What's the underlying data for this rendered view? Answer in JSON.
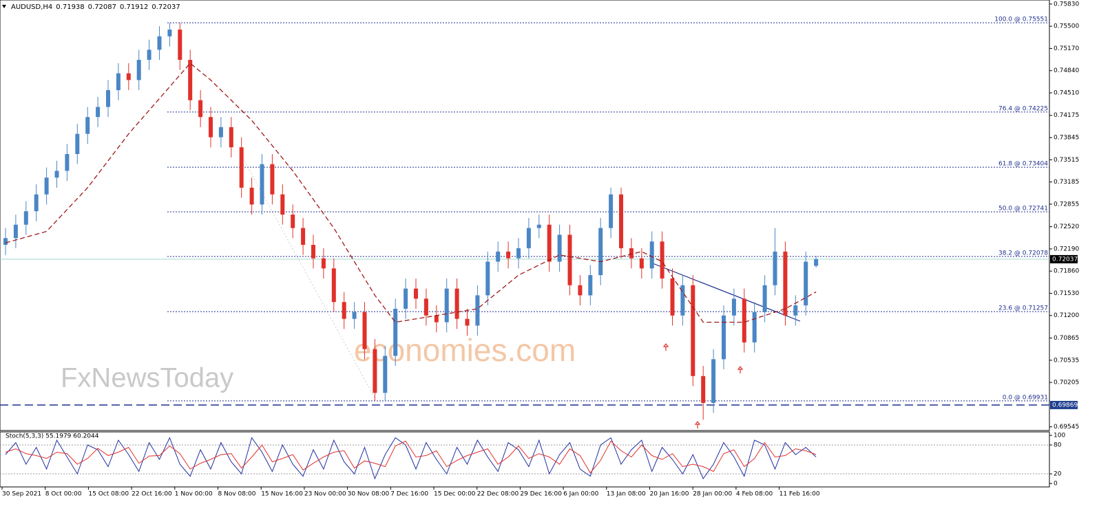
{
  "chart_data": {
    "type": "candlestick",
    "symbol": "AUDUSD,H4",
    "open": [
      0.7225,
      0.7235,
      0.7255,
      0.7275,
      0.73,
      0.7325,
      0.7335,
      0.736,
      0.739,
      0.7415,
      0.743,
      0.7455,
      0.748,
      0.747,
      0.75,
      0.7515,
      0.7535,
      0.7545,
      0.75,
      0.744,
      0.7415,
      0.7385,
      0.74,
      0.737,
      0.731,
      0.7285,
      0.7345,
      0.73,
      0.727,
      0.725,
      0.7225,
      0.7205,
      0.719,
      0.714,
      0.7115,
      0.7125,
      0.707,
      0.7005,
      0.706,
      0.713,
      0.716,
      0.7145,
      0.712,
      0.711,
      0.716,
      0.7115,
      0.7105,
      0.715,
      0.72,
      0.7215,
      0.7205,
      0.722,
      0.725,
      0.7255,
      0.72,
      0.724,
      0.7165,
      0.715,
      0.718,
      0.725,
      0.73,
      0.722,
      0.7205,
      0.719,
      0.723,
      0.7175,
      0.712,
      0.7165,
      0.703,
      0.699,
      0.7055,
      0.712,
      0.7145,
      0.708,
      0.7125,
      0.7165,
      0.7215,
      0.712,
      0.7135,
      0.71938
    ],
    "high": [
      0.725,
      0.727,
      0.729,
      0.7315,
      0.734,
      0.735,
      0.7375,
      0.7405,
      0.743,
      0.7445,
      0.747,
      0.7495,
      0.7495,
      0.7515,
      0.753,
      0.755,
      0.7555,
      0.7555,
      0.7515,
      0.7455,
      0.743,
      0.7415,
      0.7415,
      0.7385,
      0.7325,
      0.736,
      0.736,
      0.7315,
      0.7285,
      0.7265,
      0.724,
      0.722,
      0.7205,
      0.7155,
      0.714,
      0.714,
      0.7085,
      0.7075,
      0.7145,
      0.7175,
      0.7175,
      0.716,
      0.7135,
      0.7175,
      0.7175,
      0.713,
      0.7165,
      0.7215,
      0.723,
      0.723,
      0.7235,
      0.7265,
      0.727,
      0.727,
      0.7255,
      0.7255,
      0.718,
      0.7195,
      0.7265,
      0.731,
      0.731,
      0.7235,
      0.722,
      0.7245,
      0.7245,
      0.719,
      0.718,
      0.718,
      0.7045,
      0.707,
      0.7135,
      0.716,
      0.716,
      0.714,
      0.718,
      0.725,
      0.723,
      0.715,
      0.7215,
      0.72087
    ],
    "low": [
      0.721,
      0.722,
      0.724,
      0.726,
      0.7285,
      0.731,
      0.732,
      0.7345,
      0.7375,
      0.74,
      0.7415,
      0.744,
      0.7455,
      0.7455,
      0.7485,
      0.75,
      0.752,
      0.7485,
      0.7425,
      0.74,
      0.737,
      0.737,
      0.7355,
      0.7295,
      0.727,
      0.727,
      0.7285,
      0.7255,
      0.7235,
      0.721,
      0.719,
      0.7175,
      0.7125,
      0.71,
      0.71,
      0.7055,
      0.6993,
      0.6993,
      0.7045,
      0.7115,
      0.713,
      0.7105,
      0.7095,
      0.7095,
      0.71,
      0.709,
      0.709,
      0.7135,
      0.7185,
      0.719,
      0.719,
      0.7205,
      0.7235,
      0.7185,
      0.7185,
      0.715,
      0.7135,
      0.7135,
      0.7165,
      0.7235,
      0.7205,
      0.719,
      0.7175,
      0.7175,
      0.716,
      0.7105,
      0.7105,
      0.7015,
      0.6965,
      0.6975,
      0.704,
      0.7105,
      0.7065,
      0.7065,
      0.711,
      0.715,
      0.7105,
      0.7105,
      0.712,
      0.71912
    ],
    "close": [
      0.7235,
      0.7255,
      0.7275,
      0.73,
      0.7325,
      0.7335,
      0.736,
      0.739,
      0.7415,
      0.743,
      0.7455,
      0.748,
      0.747,
      0.75,
      0.7515,
      0.7535,
      0.7545,
      0.75,
      0.744,
      0.7415,
      0.7385,
      0.74,
      0.737,
      0.731,
      0.7285,
      0.7345,
      0.73,
      0.727,
      0.725,
      0.7225,
      0.7205,
      0.719,
      0.714,
      0.7115,
      0.7125,
      0.707,
      0.7005,
      0.706,
      0.713,
      0.716,
      0.7145,
      0.712,
      0.711,
      0.716,
      0.7115,
      0.7105,
      0.715,
      0.72,
      0.7215,
      0.7205,
      0.722,
      0.725,
      0.7255,
      0.72,
      0.724,
      0.7165,
      0.715,
      0.718,
      0.725,
      0.73,
      0.722,
      0.7205,
      0.719,
      0.723,
      0.7175,
      0.712,
      0.7165,
      0.703,
      0.699,
      0.7055,
      0.712,
      0.7145,
      0.708,
      0.7125,
      0.7165,
      0.7215,
      0.712,
      0.7135,
      0.72,
      0.72037
    ],
    "up_color": "#4a86c5",
    "down_color": "#e0302a",
    "ma": {
      "x": [
        0,
        4,
        8,
        12,
        16,
        18,
        20,
        24,
        28,
        32,
        36,
        38,
        42,
        46,
        50,
        54,
        58,
        62,
        64,
        68,
        72,
        76,
        79
      ],
      "values": [
        0.7228,
        0.7245,
        0.731,
        0.739,
        0.746,
        0.7495,
        0.747,
        0.741,
        0.7335,
        0.725,
        0.715,
        0.711,
        0.712,
        0.713,
        0.718,
        0.721,
        0.72,
        0.7215,
        0.72,
        0.711,
        0.711,
        0.713,
        0.7155
      ],
      "color": "#a01818"
    },
    "ylim": [
      0.6949,
      0.7589
    ],
    "yticks": [
      {
        "value": 0.7583,
        "label": "0.75830"
      },
      {
        "value": 0.755,
        "label": "0.75500"
      },
      {
        "value": 0.7517,
        "label": "0.75170"
      },
      {
        "value": 0.7484,
        "label": "0.74840"
      },
      {
        "value": 0.7451,
        "label": "0.74510"
      },
      0.74175,
      0.73845,
      0.73515,
      0.73185,
      0.72855,
      {
        "value": 0.7252,
        "label": "0.72520"
      },
      {
        "value": 0.7219,
        "label": "0.72190"
      },
      {
        "value": 0.7186,
        "label": "0.71860"
      },
      {
        "value": 0.7153,
        "label": "0.71530"
      },
      {
        "value": 0.712,
        "label": "0.71200"
      },
      0.70865,
      0.70535,
      0.70205,
      0.69545
    ],
    "fib_levels": [
      {
        "value": 0.75551,
        "label": "100.0 @ 0.75551"
      },
      {
        "value": 0.74225,
        "label": "76.4 @ 0.74225"
      },
      {
        "value": 0.73404,
        "label": "61.8 @ 0.73404"
      },
      {
        "value": 0.72741,
        "label": "50.0 @ 0.72741"
      },
      {
        "value": 0.72078,
        "label": "38.2 @ 0.72078"
      },
      {
        "value": 0.71257,
        "label": "23.6 @ 0.71257"
      },
      {
        "value": 0.69931,
        "label": "0.0 @ 0.69931"
      }
    ],
    "support_line": 0.69869,
    "x_labels": [
      "30 Sep 2021",
      "8 Oct 00:00",
      "15 Oct 08:00",
      "22 Oct 16:00",
      "1 Nov 00:00",
      "8 Nov 08:00",
      "15 Nov 16:00",
      "23 Nov 00:00",
      "30 Nov 08:00",
      "7 Dec 16:00",
      "15 Dec 00:00",
      "22 Dec 08:00",
      "29 Dec 16:00",
      "6 Jan 00:00",
      "13 Jan 08:00",
      "20 Jan 16:00",
      "28 Jan 00:00",
      "4 Feb 08:00",
      "11 Feb 16:00"
    ],
    "stoch": {
      "title": "Stoch(5,3,3) 55.1979 60.2044",
      "ylim": [
        0,
        100
      ],
      "yticks": [
        0,
        20,
        80,
        100
      ],
      "levels": [
        20,
        80
      ],
      "series": [
        {
          "color": "#1f2fa0",
          "values": [
            60,
            85,
            40,
            75,
            30,
            90,
            55,
            20,
            80,
            70,
            35,
            90,
            60,
            25,
            85,
            50,
            95,
            40,
            15,
            70,
            30,
            85,
            45,
            20,
            95,
            65,
            25,
            80,
            40,
            15,
            70,
            30,
            90,
            45,
            20,
            75,
            10,
            60,
            95,
            80,
            30,
            85,
            50,
            20,
            75,
            40,
            90,
            55,
            25,
            85,
            70,
            35,
            90,
            20,
            60,
            85,
            30,
            15,
            80,
            95,
            40,
            70,
            90,
            25,
            75,
            50,
            20,
            60,
            10,
            40,
            85,
            55,
            15,
            90,
            80,
            30,
            85,
            60,
            75,
            55.1979
          ]
        },
        {
          "color": "#e0302a",
          "values": [
            65,
            72,
            62,
            58,
            52,
            65,
            62,
            40,
            52,
            73,
            58,
            65,
            75,
            42,
            57,
            58,
            78,
            62,
            30,
            42,
            50,
            60,
            62,
            32,
            55,
            80,
            45,
            52,
            60,
            28,
            42,
            55,
            65,
            68,
            32,
            47,
            42,
            35,
            78,
            88,
            55,
            58,
            68,
            35,
            48,
            58,
            65,
            72,
            40,
            55,
            78,
            52,
            62,
            55,
            40,
            72,
            58,
            22,
            48,
            88,
            68,
            55,
            80,
            58,
            50,
            62,
            35,
            40,
            35,
            25,
            62,
            70,
            35,
            52,
            85,
            55,
            58,
            72,
            68,
            60.2044
          ]
        }
      ]
    },
    "watermark": [
      "economies.com",
      "FxNewsToday"
    ]
  }
}
